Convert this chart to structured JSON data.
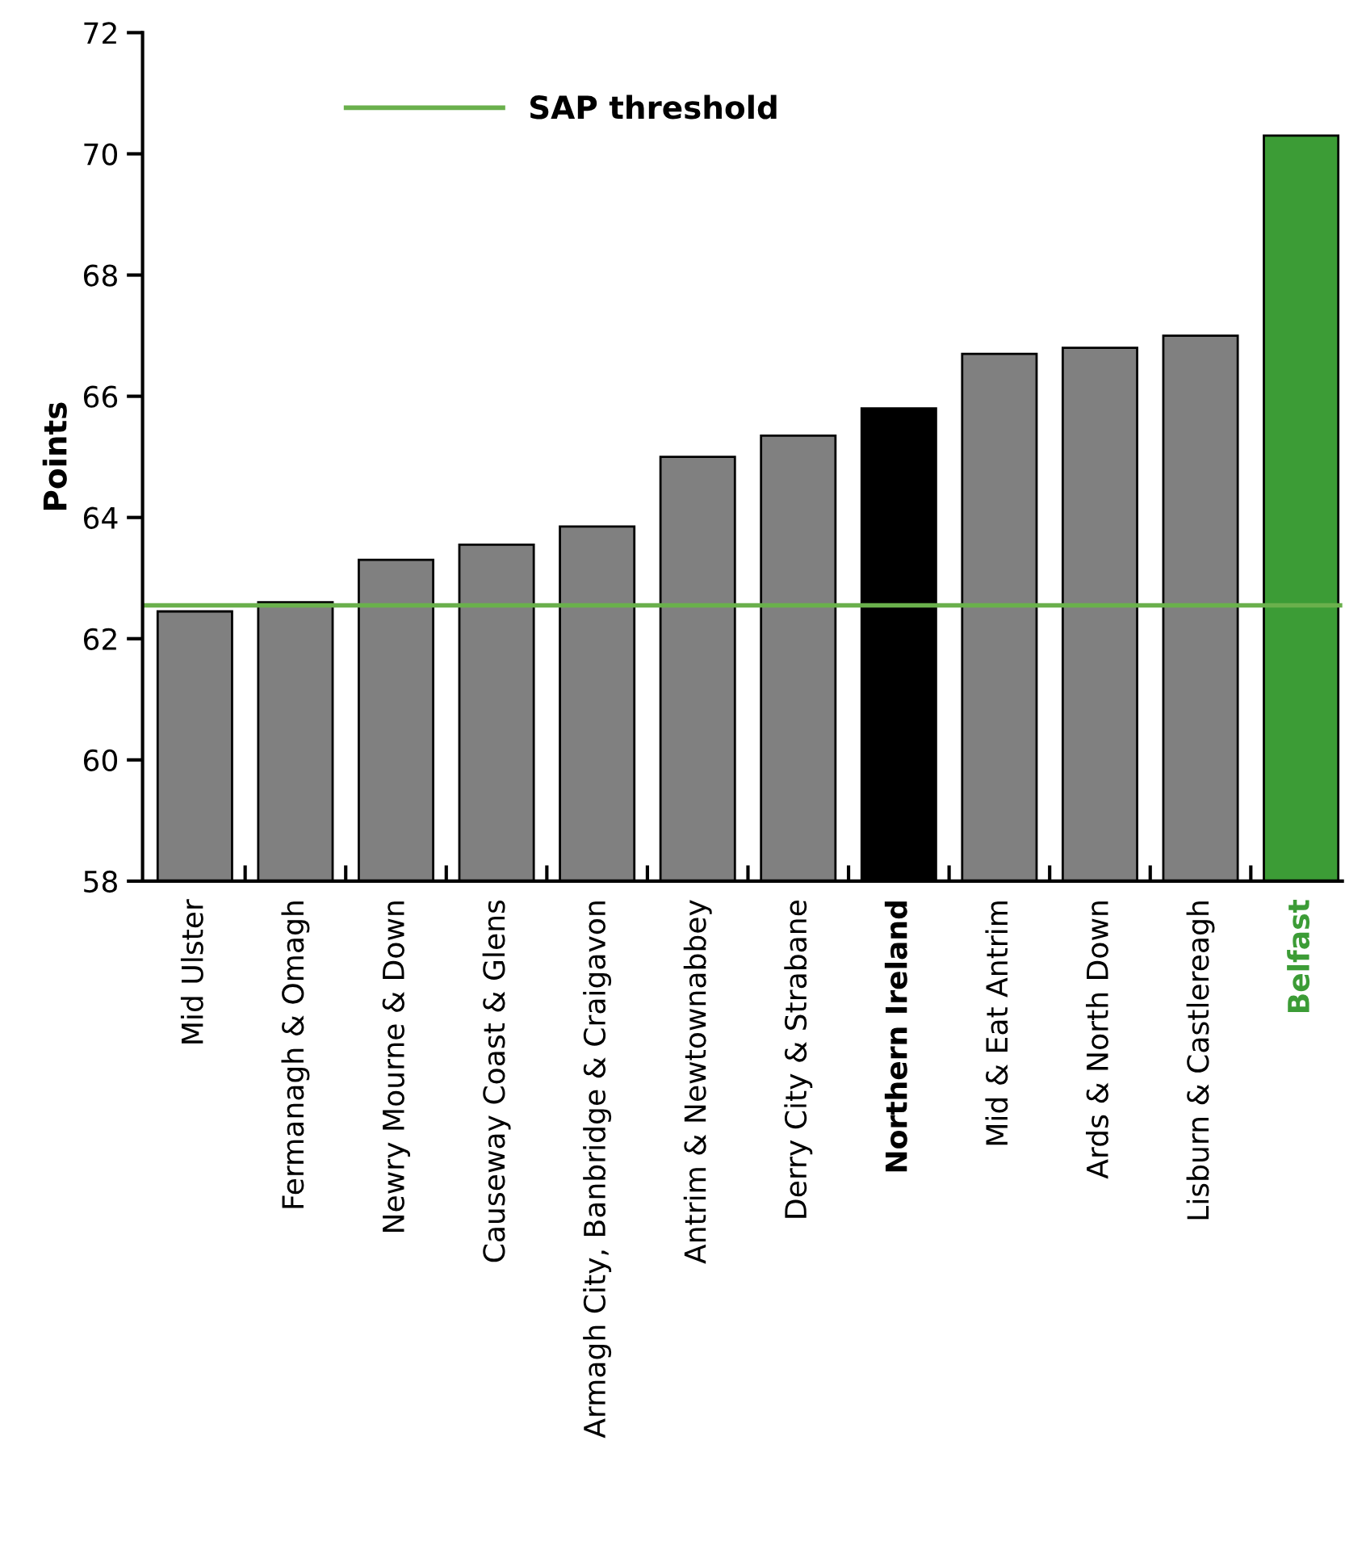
{
  "chart_data": {
    "type": "bar",
    "ylabel": "Points",
    "categories": [
      "Mid Ulster",
      "Fermanagh & Omagh",
      "Newry Mourne & Down",
      "Causeway Coast & Glens",
      "Armagh City, Banbridge & Craigavon",
      "Antrim & Newtownabbey",
      "Derry City & Strabane",
      "Northern Ireland",
      "Mid & Eat Antrim",
      "Ards & North Down",
      "Lisburn & Castlereagh",
      "Belfast"
    ],
    "values": [
      62.45,
      62.6,
      63.3,
      63.55,
      63.85,
      65.0,
      65.35,
      65.8,
      66.7,
      66.8,
      67.0,
      70.3
    ],
    "colors": [
      "#808080",
      "#808080",
      "#808080",
      "#808080",
      "#808080",
      "#808080",
      "#808080",
      "#000000",
      "#808080",
      "#808080",
      "#808080",
      "#3c9c36"
    ],
    "ylim": [
      58,
      72
    ],
    "yticks": [
      58,
      60,
      62,
      64,
      66,
      68,
      70,
      72
    ],
    "ref_lines": [
      {
        "axis": "y",
        "value": 62.55,
        "label": "SAP threshold",
        "color": "#6ab04c",
        "line_style": "solid"
      }
    ],
    "legend": "top",
    "grid": false
  }
}
